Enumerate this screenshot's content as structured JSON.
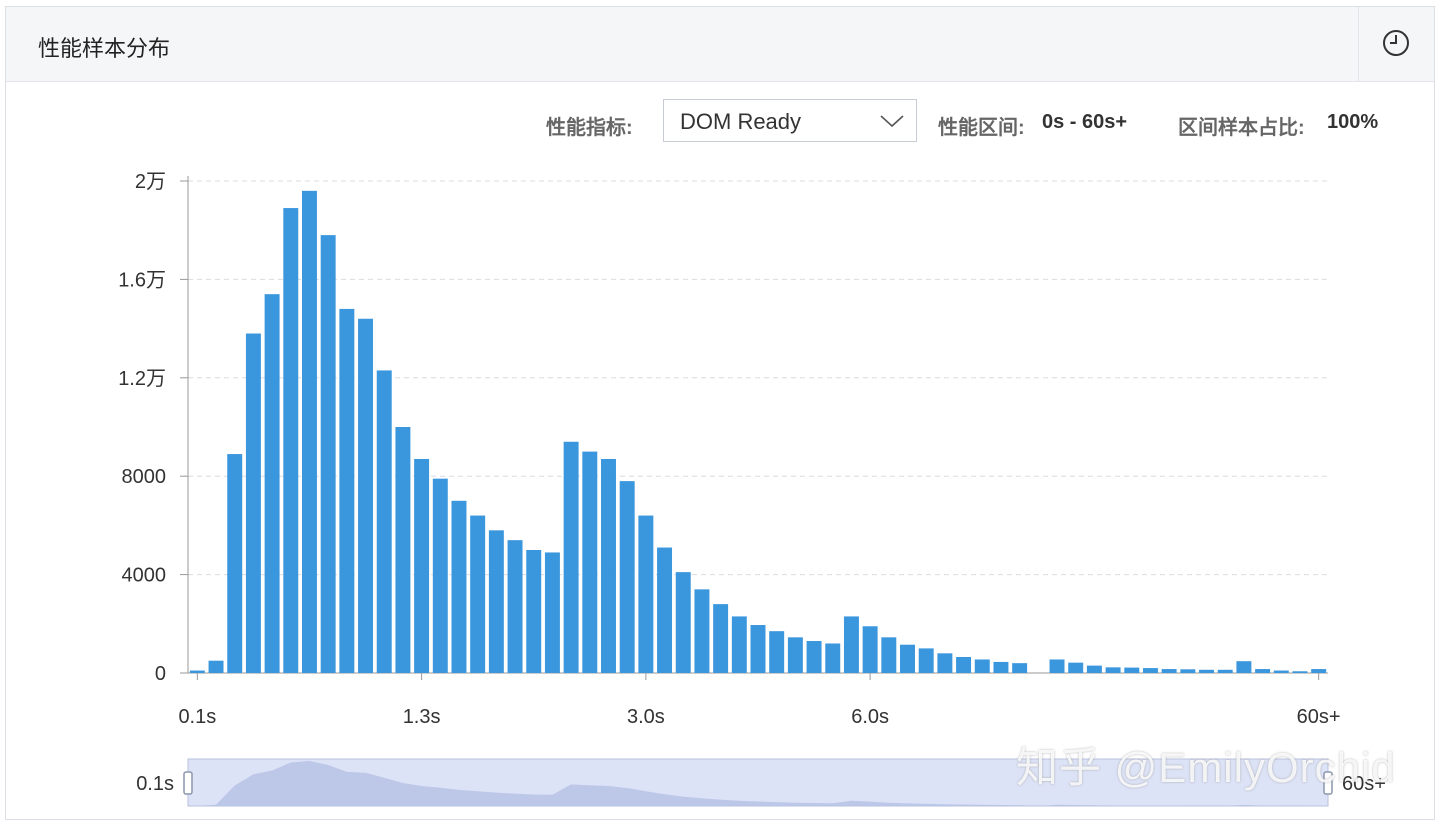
{
  "panel": {
    "title": "性能样本分布",
    "history_icon": "clock-icon"
  },
  "toolbar": {
    "metric_label": "性能指标:",
    "metric_value": "DOM Ready",
    "range_label": "性能区间:",
    "range_value": "0s - 60s+",
    "ratio_label": "区间样本占比:",
    "ratio_value": "100%"
  },
  "colors": {
    "bar": "#3a96dd",
    "grid": "#d9dce3",
    "axis": "#999999",
    "slider_fill": "#dde3f6",
    "slider_area": "#b7c3e6"
  },
  "chart_data": {
    "type": "bar",
    "title": "",
    "xlabel": "",
    "ylabel": "",
    "ylim": [
      0,
      20000
    ],
    "y_ticks": [
      "0",
      "4000",
      "8000",
      "1.2万",
      "1.6万",
      "2万"
    ],
    "x_ticks": [
      "0.1s",
      "1.3s",
      "3.0s",
      "6.0s",
      "60s+"
    ],
    "values": [
      100,
      500,
      8900,
      13800,
      15400,
      18900,
      19600,
      17800,
      14800,
      14400,
      12300,
      10000,
      8700,
      7900,
      7000,
      6400,
      5800,
      5400,
      5000,
      4900,
      9400,
      9000,
      8700,
      7800,
      6400,
      5100,
      4100,
      3400,
      2800,
      2300,
      1950,
      1700,
      1450,
      1300,
      1200,
      2300,
      1900,
      1450,
      1150,
      1000,
      800,
      650,
      550,
      450,
      400,
      0,
      550,
      420,
      300,
      230,
      220,
      200,
      160,
      150,
      130,
      130,
      480,
      160,
      100,
      70,
      160
    ],
    "grid": true,
    "legend": "none"
  },
  "slider": {
    "start_label": "0.1s",
    "end_label": "60s+"
  },
  "watermark": "知乎 @EmilyOrchid"
}
